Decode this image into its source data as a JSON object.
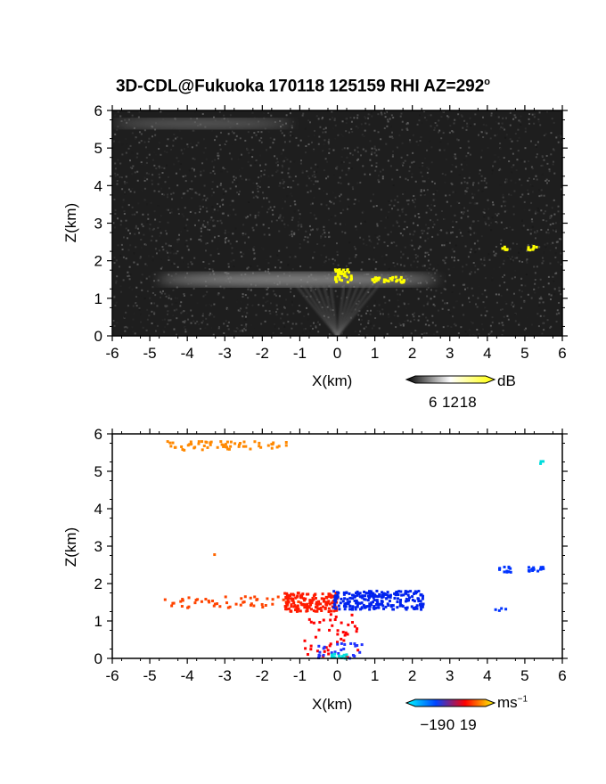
{
  "chart_data": [
    {
      "type": "heatmap",
      "title": "3D-CDL@Fukuoka 170118 125159 RHI AZ=292",
      "title_sup": "o",
      "xlabel": "X(km)",
      "ylabel": "Z(km)",
      "xlim": [
        -6,
        6
      ],
      "ylim": [
        0,
        6
      ],
      "x_ticks": [
        "-6",
        "-5",
        "-4",
        "-3",
        "-2",
        "-1",
        "0",
        "1",
        "2",
        "3",
        "4",
        "5",
        "6"
      ],
      "y_ticks": [
        "0",
        "1",
        "2",
        "3",
        "4",
        "5",
        "6"
      ],
      "background": "#1e1e1e",
      "colorbar": {
        "label": "dB",
        "ticks": [
          "6",
          "12",
          "18"
        ],
        "colors": [
          "#000000",
          "#ffffff",
          "#ffff00"
        ]
      },
      "features": [
        {
          "kind": "band",
          "x": [
            -6.0,
            -1.2
          ],
          "z": 5.65,
          "thickness": 0.12,
          "shade": "#666666"
        },
        {
          "kind": "band",
          "x": [
            -4.8,
            2.7
          ],
          "z": 1.5,
          "thickness": 0.22,
          "shade": "#8a8a8a"
        },
        {
          "kind": "fan",
          "x0": 0.0,
          "z0": 0.0,
          "z1": 1.35,
          "spread": 1.1,
          "shade": "#6a6a6a"
        },
        {
          "kind": "hot",
          "x": [
            -0.1,
            0.35
          ],
          "z": [
            1.45,
            1.8
          ],
          "color": "#ffff00"
        },
        {
          "kind": "hot",
          "x": [
            0.9,
            1.75
          ],
          "z": [
            1.45,
            1.6
          ],
          "color": "#ffff00"
        },
        {
          "kind": "hot",
          "x": [
            4.35,
            4.55
          ],
          "z": [
            2.32,
            2.42
          ],
          "color": "#ffff00"
        },
        {
          "kind": "hot",
          "x": [
            5.05,
            5.35
          ],
          "z": [
            2.32,
            2.44
          ],
          "color": "#ffff00"
        }
      ]
    },
    {
      "type": "scatter",
      "title": "",
      "xlabel": "X(km)",
      "ylabel": "Z(km)",
      "xlim": [
        -6,
        6
      ],
      "ylim": [
        0,
        6
      ],
      "x_ticks": [
        "-6",
        "-5",
        "-4",
        "-3",
        "-2",
        "-1",
        "0",
        "1",
        "2",
        "3",
        "4",
        "5",
        "6"
      ],
      "y_ticks": [
        "0",
        "1",
        "2",
        "3",
        "4",
        "5",
        "6"
      ],
      "colorbar": {
        "label": "ms",
        "label_sup": "−1",
        "ticks": [
          "−19",
          "0",
          "19"
        ],
        "colors": [
          "#00ffff",
          "#0044ff",
          "#ff0000",
          "#ffff00"
        ]
      },
      "clusters": [
        {
          "x": [
            -4.6,
            -1.3
          ],
          "z": [
            5.55,
            5.8
          ],
          "color": "#ff8800",
          "n": 60
        },
        {
          "x": [
            -3.3,
            -3.2
          ],
          "z": [
            2.7,
            2.8
          ],
          "color": "#ff6600",
          "n": 1
        },
        {
          "x": [
            -4.6,
            -1.0
          ],
          "z": [
            1.35,
            1.65
          ],
          "color": "#ff4400",
          "n": 55
        },
        {
          "x": [
            -1.4,
            0.0
          ],
          "z": [
            1.25,
            1.75
          ],
          "color": "#ff1a00",
          "n": 150
        },
        {
          "x": [
            -0.1,
            2.3
          ],
          "z": [
            1.3,
            1.8
          ],
          "color": "#0022ee",
          "n": 230
        },
        {
          "x": [
            4.3,
            4.7
          ],
          "z": [
            2.3,
            2.45
          ],
          "color": "#0033ff",
          "n": 12
        },
        {
          "x": [
            5.1,
            5.5
          ],
          "z": [
            2.3,
            2.45
          ],
          "color": "#0033ff",
          "n": 14
        },
        {
          "x": [
            4.2,
            4.5
          ],
          "z": [
            1.25,
            1.35
          ],
          "color": "#0033ff",
          "n": 4
        },
        {
          "x": [
            5.4,
            5.5
          ],
          "z": [
            5.2,
            5.3
          ],
          "color": "#00dddd",
          "n": 3
        },
        {
          "x": [
            -0.9,
            0.6
          ],
          "z": [
            0.0,
            1.2
          ],
          "color": "#ff0000",
          "n": 45
        },
        {
          "x": [
            -0.5,
            0.9
          ],
          "z": [
            0.0,
            0.45
          ],
          "color": "#2233ff",
          "n": 25
        },
        {
          "x": [
            -0.15,
            0.25
          ],
          "z": [
            0.0,
            0.12
          ],
          "color": "#00dddd",
          "n": 14
        }
      ]
    }
  ]
}
